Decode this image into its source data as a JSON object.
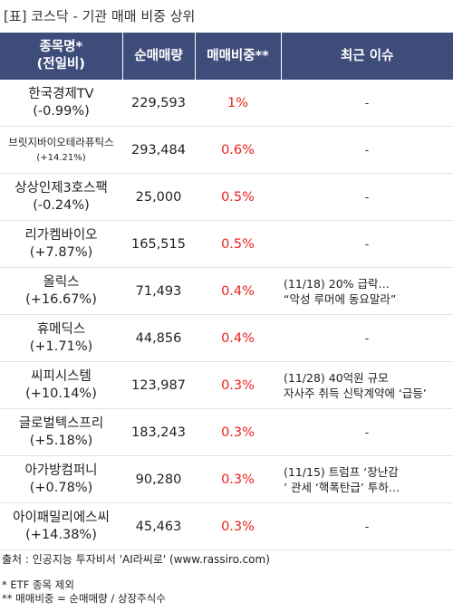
{
  "title": "[표] 코스닥 - 기관 매매 비중 상위",
  "headers": {
    "name_line1": "종목명*",
    "name_line2": "(전일비)",
    "volume": "순매매량",
    "ratio": "매매비중**",
    "issue": "최근 이슈"
  },
  "rows": [
    {
      "name": "한국경제TV",
      "change": "(-0.99%)",
      "volume": "229,593",
      "ratio": "1%",
      "issue1": "",
      "issue2": "",
      "dash": "-"
    },
    {
      "name": "브릿지바이오테라퓨틱스",
      "change": "(+14.21%)",
      "volume": "293,484",
      "ratio": "0.6%",
      "issue1": "",
      "issue2": "",
      "dash": "-"
    },
    {
      "name": "상상인제3호스팩",
      "change": "(-0.24%)",
      "volume": "25,000",
      "ratio": "0.5%",
      "issue1": "",
      "issue2": "",
      "dash": "-"
    },
    {
      "name": "리가켐바이오",
      "change": "(+7.87%)",
      "volume": "165,515",
      "ratio": "0.5%",
      "issue1": "",
      "issue2": "",
      "dash": "-"
    },
    {
      "name": "올릭스",
      "change": "(+16.67%)",
      "volume": "71,493",
      "ratio": "0.4%",
      "issue1": "(11/18) 20% 급락…",
      "issue2": "“악성 루머에 동요말라”",
      "dash": ""
    },
    {
      "name": "휴메딕스",
      "change": "(+1.71%)",
      "volume": "44,856",
      "ratio": "0.4%",
      "issue1": "",
      "issue2": "",
      "dash": "-"
    },
    {
      "name": "씨피시스템",
      "change": "(+10.14%)",
      "volume": "123,987",
      "ratio": "0.3%",
      "issue1": "(11/28) 40억원 규모",
      "issue2": "자사주 취득 신탁계약에 ‘급등’",
      "dash": ""
    },
    {
      "name": "글로벌텍스프리",
      "change": "(+5.18%)",
      "volume": "183,243",
      "ratio": "0.3%",
      "issue1": "",
      "issue2": "",
      "dash": "-"
    },
    {
      "name": "아가방컴퍼니",
      "change": "(+0.78%)",
      "volume": "90,280",
      "ratio": "0.3%",
      "issue1": "(11/15) 트럼프 ‘장난감",
      "issue2": "’ 관세 ‘핵폭탄급’ 투하… ",
      "dash": ""
    },
    {
      "name": "아이패밀리에스씨",
      "change": "(+14.38%)",
      "volume": "45,463",
      "ratio": "0.3%",
      "issue1": "",
      "issue2": "",
      "dash": "-"
    }
  ],
  "source": "출처 : 인공지능 투자비서 'AI라씨로' (www.rassiro.com)",
  "note1": "* ETF 종목 제외",
  "note2": "** 매매비중 = 순매매량 / 상장주식수"
}
